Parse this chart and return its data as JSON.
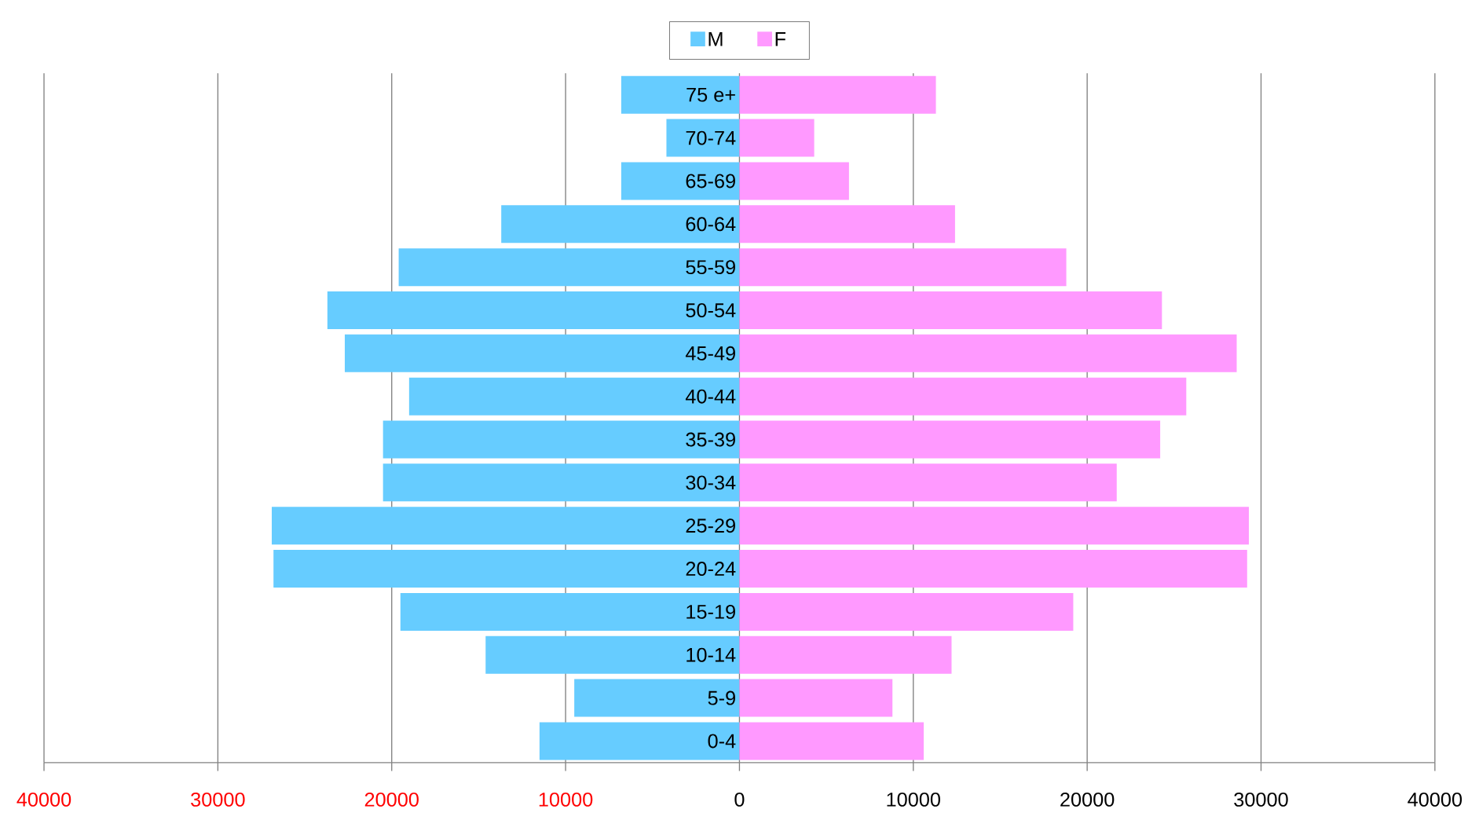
{
  "chart_data": {
    "type": "bar",
    "orientation": "horizontal",
    "stacked": true,
    "categories": [
      "75 e+",
      "70-74",
      "65-69",
      "60-64",
      "55-59",
      "50-54",
      "45-49",
      "40-44",
      "35-39",
      "30-34",
      "25-29",
      "20-24",
      "15-19",
      "10-14",
      "5-9",
      "0-4"
    ],
    "series": [
      {
        "name": "M",
        "color": "#66ccff",
        "values": [
          -6800,
          -4200,
          -6800,
          -13700,
          -19600,
          -23700,
          -22700,
          -19000,
          -20500,
          -20500,
          -26900,
          -26800,
          -19500,
          -14600,
          -9500,
          -11500
        ]
      },
      {
        "name": "F",
        "color": "#ff99ff",
        "values": [
          11300,
          4300,
          6300,
          12400,
          18800,
          24300,
          28600,
          25700,
          24200,
          21700,
          29300,
          29200,
          19200,
          12200,
          8800,
          10600
        ]
      }
    ],
    "xlim": [
      -40000,
      40000
    ],
    "xticks": [
      {
        "value": -40000,
        "label": "40000"
      },
      {
        "value": -30000,
        "label": "30000"
      },
      {
        "value": -20000,
        "label": "20000"
      },
      {
        "value": -10000,
        "label": "10000"
      },
      0,
      10000,
      20000,
      30000,
      40000
    ],
    "grid": "x",
    "legend": "top"
  }
}
